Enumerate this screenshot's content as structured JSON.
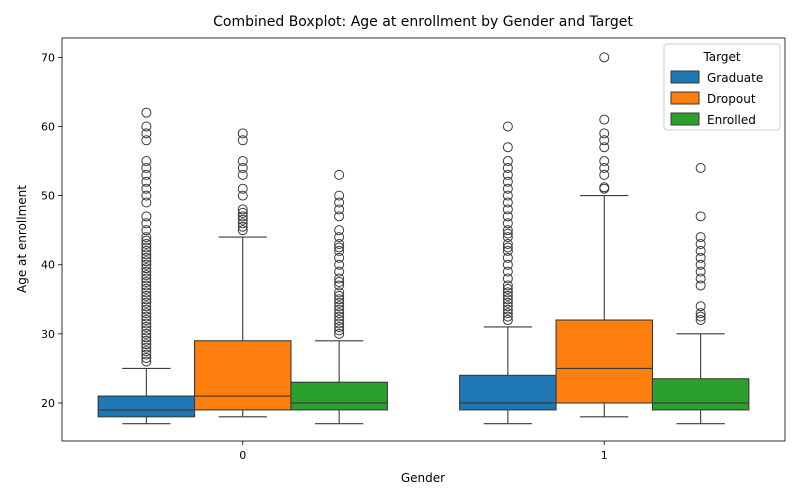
{
  "chart_data": {
    "type": "boxplot",
    "title": "Combined Boxplot: Age at enrollment by Gender and Target",
    "xlabel": "Gender",
    "ylabel": "Age at enrollment",
    "categories": [
      "0",
      "1"
    ],
    "ylim": [
      14.5,
      72.8
    ],
    "yticks": [
      20,
      30,
      40,
      50,
      60,
      70
    ],
    "grid": false,
    "legend": {
      "title": "Target",
      "placement": "top-right"
    },
    "series": [
      {
        "name": "Graduate",
        "color": "#1f77b4",
        "boxes": [
          {
            "whisker_low": 17,
            "q1": 18,
            "median": 19,
            "q3": 21,
            "whisker_high": 25,
            "outliers": [
              26,
              26.5,
              27,
              27.5,
              28,
              28.5,
              29,
              29.5,
              30,
              30.5,
              31,
              31.5,
              32,
              32.5,
              33,
              33.5,
              34,
              34.5,
              35,
              35.5,
              36,
              36.5,
              37,
              37.5,
              38,
              38.5,
              39,
              39.5,
              40,
              40.5,
              41,
              41.5,
              42,
              42.5,
              43,
              43.5,
              44,
              45,
              46,
              47,
              49,
              50,
              51,
              52,
              53,
              54,
              55,
              58,
              59,
              60,
              62
            ]
          },
          {
            "whisker_low": 17,
            "q1": 19,
            "median": 20,
            "q3": 24,
            "whisker_high": 31,
            "outliers": [
              32,
              32.5,
              33,
              33.5,
              34,
              34.5,
              35,
              35.5,
              36,
              36.5,
              37,
              38,
              39,
              40,
              41,
              42,
              42.5,
              43,
              44,
              44.5,
              45,
              46,
              47,
              48,
              49,
              50,
              51,
              52,
              53,
              54,
              55,
              57,
              60
            ]
          }
        ]
      },
      {
        "name": "Dropout",
        "color": "#ff7f0e",
        "boxes": [
          {
            "whisker_low": 18,
            "q1": 19,
            "median": 21,
            "q3": 29,
            "whisker_high": 44,
            "outliers": [
              45,
              45.5,
              46,
              46.5,
              47,
              47.5,
              48,
              50,
              51,
              53,
              54,
              55,
              58,
              59
            ]
          },
          {
            "whisker_low": 18,
            "q1": 20,
            "median": 25,
            "q3": 32,
            "whisker_high": 50,
            "outliers": [
              51,
              51.2,
              53,
              54,
              55,
              57,
              58,
              59,
              61,
              70
            ]
          }
        ]
      },
      {
        "name": "Enrolled",
        "color": "#2ca02c",
        "boxes": [
          {
            "whisker_low": 17,
            "q1": 19,
            "median": 20,
            "q3": 23,
            "whisker_high": 29,
            "outliers": [
              30,
              30.5,
              31,
              31.5,
              32,
              32.5,
              33,
              33.5,
              34,
              34.5,
              35,
              35.5,
              36,
              37,
              37.5,
              38,
              39,
              40,
              41,
              42,
              42.5,
              43,
              44,
              45,
              47,
              48,
              49,
              50,
              53
            ]
          },
          {
            "whisker_low": 17,
            "q1": 19,
            "median": 20,
            "q3": 23.5,
            "whisker_high": 30,
            "outliers": [
              32,
              32.5,
              33,
              34,
              37,
              38,
              39,
              40,
              41,
              42,
              43,
              44,
              47,
              54
            ]
          }
        ]
      }
    ]
  }
}
